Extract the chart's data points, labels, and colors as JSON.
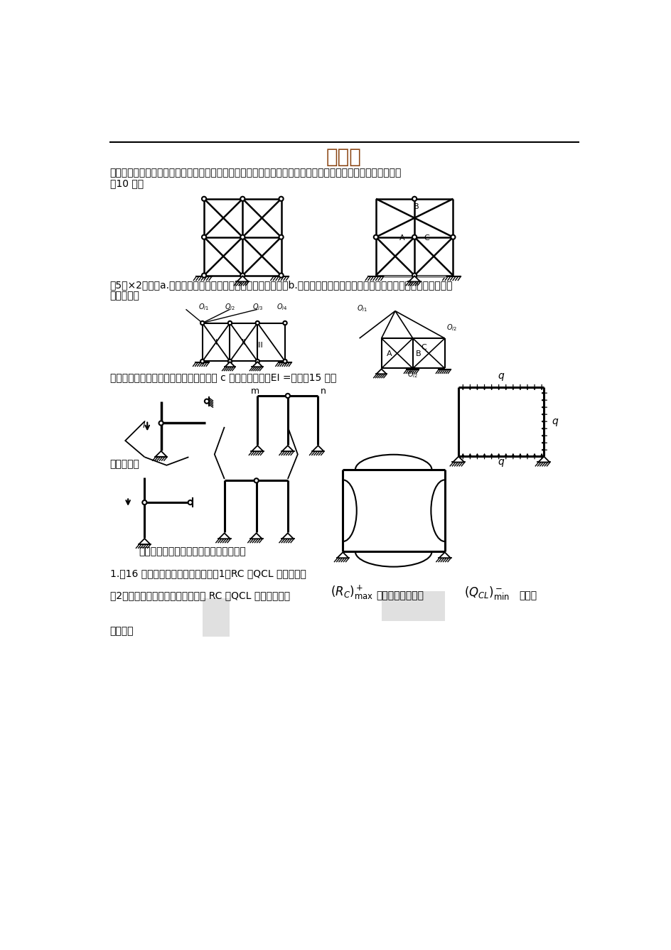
{
  "title": "试卷一",
  "background_color": "#ffffff",
  "line1a": "一、对图示体系进行几何构造分析，并指出有无多余约束，若有，指出其数量。（答题时应有必要的分析过程）",
  "line1b": "（10 分）",
  "line3a": "（5分×2）解：a.几何瞬变体系（用三刚片法则，三铰共线）；b.几何不变体系且无多余约束（体系内部用三刚片法则，三铰",
  "line3b": "不共线）；",
  "line4": "二、画出图示结构弯矩图的形状。其中图 c 各杆件长相等，EI =常数（15 分）",
  "line5": "参考答案：",
  "line6": "三、计算题（应有主要计算过程和步骤）",
  "line7": "1.（16 分）对于图示体系，试求：（1）RC 、QCL 的影响线；",
  "line8": "（2）在图示移动荷载作用下，利用 RC 、QCL 的影响线，求",
  "line8b": "（正号最大値）和",
  "line8c": "（负号",
  "line9": "教育资料"
}
